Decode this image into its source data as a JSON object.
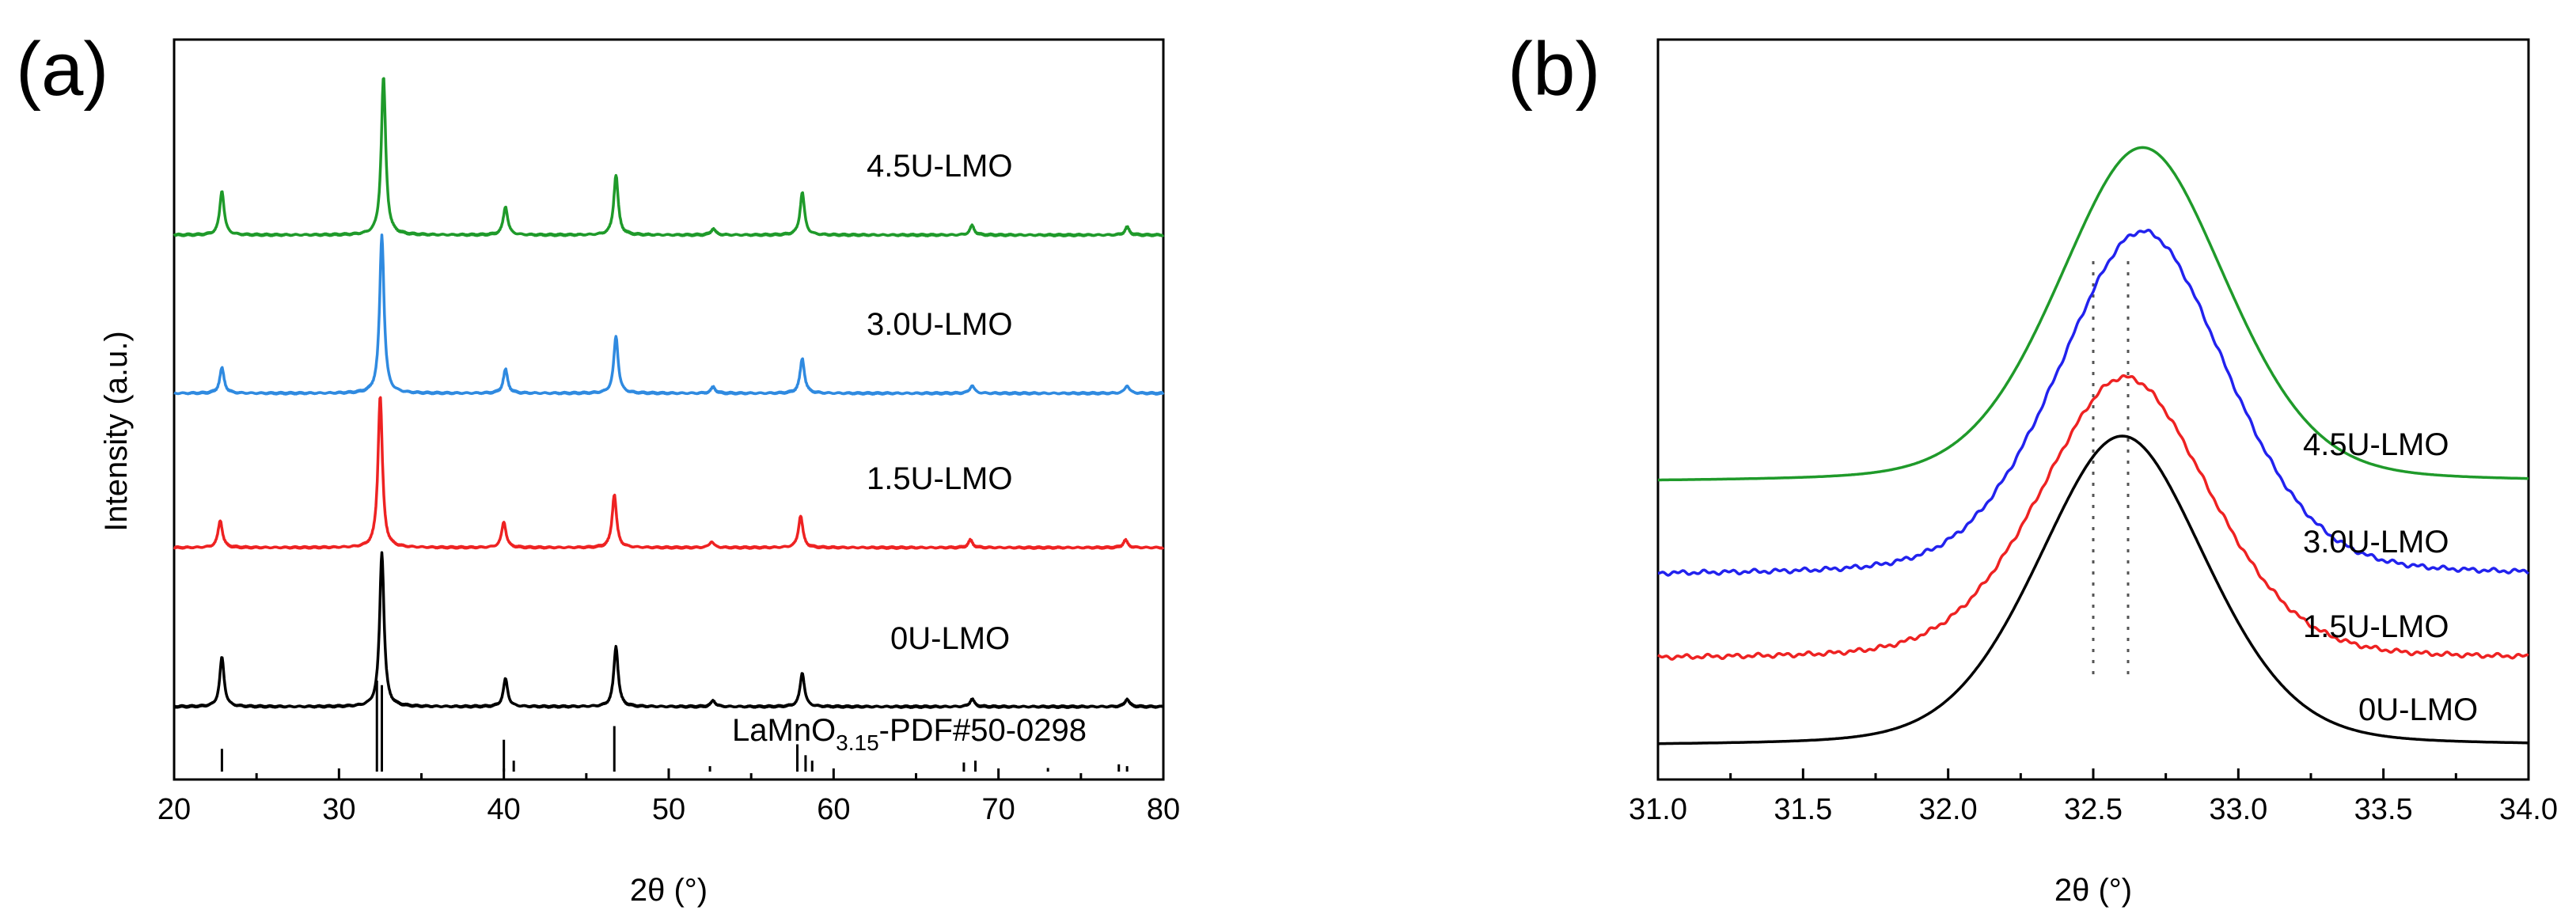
{
  "chart_data": [
    {
      "panel_label": "(a)",
      "type": "line",
      "xlabel": "2θ (°)",
      "ylabel": "Intensity (a.u.)",
      "xlim": [
        20,
        80
      ],
      "xticks": [
        20,
        30,
        40,
        50,
        60,
        70,
        80
      ],
      "yticks": false,
      "reference": {
        "label_main": "LaMnO",
        "label_sub": "3.15",
        "label_suffix": "-PDF#50-0298",
        "peaks": [
          {
            "x": 22.9,
            "h": 0.25
          },
          {
            "x": 32.3,
            "h": 1.0
          },
          {
            "x": 32.6,
            "h": 0.95
          },
          {
            "x": 40.0,
            "h": 0.35
          },
          {
            "x": 40.6,
            "h": 0.12
          },
          {
            "x": 46.7,
            "h": 0.5
          },
          {
            "x": 52.5,
            "h": 0.06
          },
          {
            "x": 57.8,
            "h": 0.3
          },
          {
            "x": 58.3,
            "h": 0.18
          },
          {
            "x": 58.7,
            "h": 0.12
          },
          {
            "x": 67.9,
            "h": 0.1
          },
          {
            "x": 68.6,
            "h": 0.12
          },
          {
            "x": 73.0,
            "h": 0.04
          },
          {
            "x": 77.3,
            "h": 0.08
          },
          {
            "x": 77.8,
            "h": 0.06
          }
        ]
      },
      "series": [
        {
          "name": "0U-LMO",
          "color": "#000000",
          "offset": 0,
          "peaks": [
            [
              22.9,
              0.32
            ],
            [
              32.6,
              1.0
            ],
            [
              40.1,
              0.18
            ],
            [
              46.8,
              0.39
            ],
            [
              52.7,
              0.04
            ],
            [
              58.1,
              0.22
            ],
            [
              68.4,
              0.05
            ],
            [
              77.8,
              0.05
            ]
          ]
        },
        {
          "name": "1.5U-LMO",
          "color": "#ee2222",
          "offset": 1,
          "peaks": [
            [
              22.8,
              0.18
            ],
            [
              32.5,
              1.0
            ],
            [
              40.0,
              0.17
            ],
            [
              46.7,
              0.35
            ],
            [
              52.6,
              0.04
            ],
            [
              58.0,
              0.21
            ],
            [
              68.3,
              0.05
            ],
            [
              77.7,
              0.05
            ]
          ]
        },
        {
          "name": "3.0U-LMO",
          "color": "#2f8ae0",
          "offset": 2,
          "peaks": [
            [
              22.9,
              0.16
            ],
            [
              32.6,
              1.0
            ],
            [
              40.1,
              0.15
            ],
            [
              46.8,
              0.36
            ],
            [
              52.7,
              0.04
            ],
            [
              58.1,
              0.22
            ],
            [
              68.4,
              0.05
            ],
            [
              77.8,
              0.05
            ]
          ]
        },
        {
          "name": "4.5U-LMO",
          "color": "#1f9a2a",
          "offset": 3,
          "peaks": [
            [
              22.9,
              0.28
            ],
            [
              32.7,
              1.0
            ],
            [
              40.1,
              0.18
            ],
            [
              46.8,
              0.38
            ],
            [
              52.7,
              0.04
            ],
            [
              58.1,
              0.27
            ],
            [
              68.4,
              0.06
            ],
            [
              77.8,
              0.05
            ]
          ]
        }
      ]
    },
    {
      "panel_label": "(b)",
      "type": "line",
      "xlabel": "2θ (°)",
      "ylabel": "",
      "xlim": [
        31.0,
        34.0
      ],
      "xticks": [
        31.0,
        31.5,
        32.0,
        32.5,
        33.0,
        33.5,
        34.0
      ],
      "yticks": false,
      "guide_lines": [
        32.5,
        32.62
      ],
      "series": [
        {
          "name": "0U-LMO",
          "color": "#000000",
          "center": 32.6,
          "base": 0.0,
          "amp": 1.0
        },
        {
          "name": "1.5U-LMO",
          "color": "#ee2222",
          "center": 32.61,
          "base": 0.28,
          "amp": 0.91
        },
        {
          "name": "3.0U-LMO",
          "color": "#2222ee",
          "center": 32.67,
          "base": 0.55,
          "amp": 1.11
        },
        {
          "name": "4.5U-LMO",
          "color": "#1f9a2a",
          "center": 32.67,
          "base": 0.85,
          "amp": 1.08
        }
      ]
    }
  ]
}
